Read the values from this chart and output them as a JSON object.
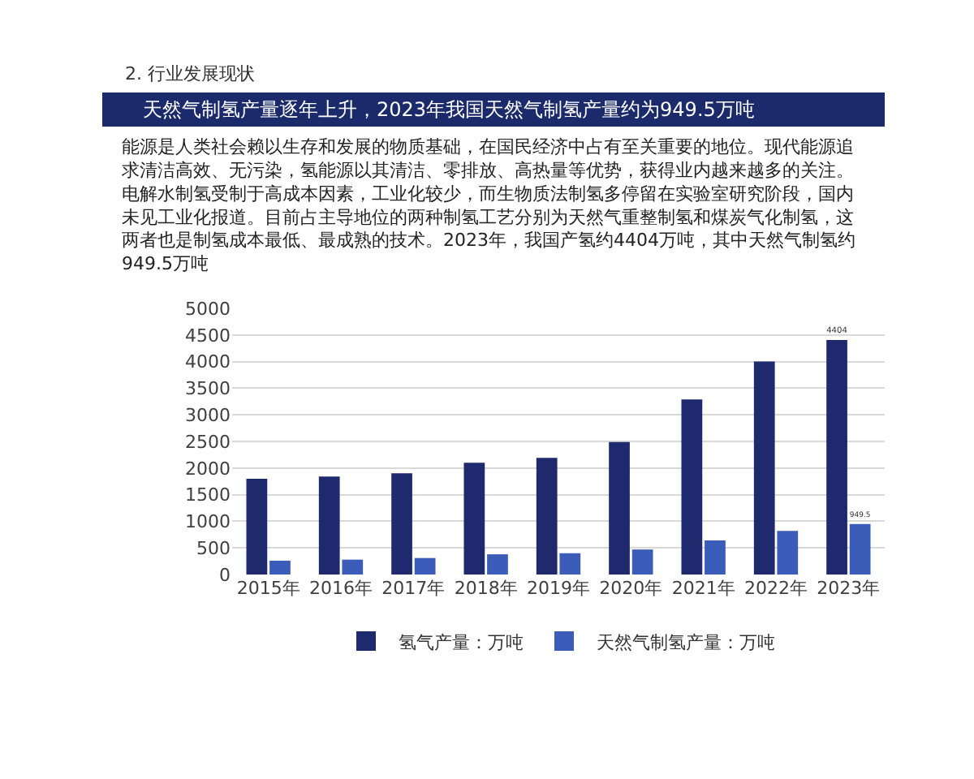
{
  "chart_data": {
    "type": "bar",
    "title": "天然气制氢产量逐年上升，2023年我国天然气制氢产量约为949.5万吨",
    "annotations": [
      "2. 行业发展现状",
      "能源是人类社会赖以生存和发展的物质基础，在国民经济中占有至关重要的地位。现代能源追求清洁高效、无污染，氢能源以其清洁、零排放、高热量等优势，获得业内越来越多的关注。",
      "电解水制氢受制于高成本因素，工业化较少，而生物质法制氢多停留在实验室研究阶段，国内未见工业化报道。目前占主导地位的两种制氢工艺分别为天然气重整制氢和煤炭气化制氢，这两者也是制氢成本最低、最成熟的技术。2023年，我国产氢约4404万吨，其中天然气制氢约949.5万吨"
    ],
    "categories": [
      "2015年",
      "2016年",
      "2017年",
      "2018年",
      "2019年",
      "2020年",
      "2021年",
      "2022年",
      "2023年"
    ],
    "series": [
      {
        "name": "氢气产量：万吨",
        "color": "#1f2a6e",
        "values": [
          1800,
          1840,
          1900,
          2100,
          2190,
          2490,
          3290,
          4000,
          4404
        ],
        "value_labels": [
          null,
          null,
          null,
          null,
          null,
          null,
          null,
          null,
          "4404"
        ]
      },
      {
        "name": "天然气制氢产量：万吨",
        "color": "#3b5cb8",
        "values": [
          260,
          280,
          310,
          380,
          400,
          470,
          640,
          820,
          949.5
        ],
        "value_labels": [
          null,
          null,
          null,
          null,
          null,
          null,
          null,
          null,
          "949.5"
        ]
      }
    ],
    "ylim": [
      0,
      5000
    ],
    "yticks": [
      0,
      500,
      1000,
      1500,
      2000,
      2500,
      3000,
      3500,
      4000,
      4500,
      5000
    ],
    "grid": "y",
    "legend": "bottom"
  }
}
